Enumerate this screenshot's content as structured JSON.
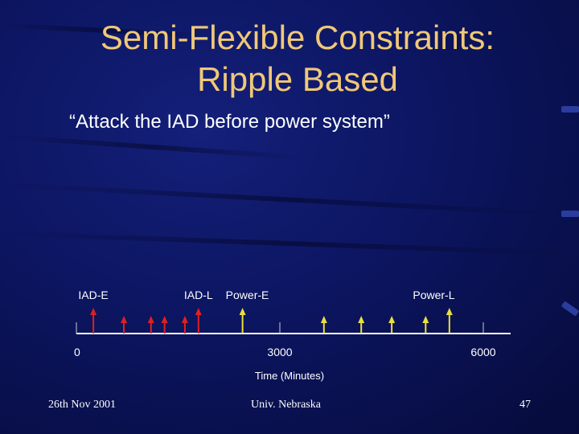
{
  "slide": {
    "title_line1": "Semi-Flexible Constraints:",
    "title_line2": "Ripple Based",
    "subtitle": "“Attack the IAD before power system”"
  },
  "chart_data": {
    "type": "timeline",
    "xlabel": "Time (Minutes)",
    "xlim": [
      0,
      6000
    ],
    "ticks": [
      0,
      3000,
      6000
    ],
    "tick_labels": [
      "0",
      "3000",
      "6000"
    ],
    "event_labels": [
      {
        "text": "IAD-E",
        "x": 250
      },
      {
        "text": "IAD-L",
        "x": 1800
      },
      {
        "text": "Power-E",
        "x": 2520
      },
      {
        "text": "Power-L",
        "x": 5270
      }
    ],
    "series": [
      {
        "color": "#e02020",
        "x": [
          250,
          700,
          1100,
          1300,
          1600,
          1800
        ],
        "tall": [
          true,
          false,
          false,
          false,
          false,
          true
        ]
      },
      {
        "color": "#e8e040",
        "x": [
          2450,
          3650,
          4200,
          4650,
          5150,
          5500
        ],
        "tall": [
          true,
          false,
          false,
          false,
          false,
          true
        ]
      }
    ],
    "colors": {
      "axis": "#ffffff",
      "ticks": "#cccccc"
    }
  },
  "footer": {
    "date": "26th Nov 2001",
    "org": "Univ. Nebraska",
    "page": "47"
  }
}
